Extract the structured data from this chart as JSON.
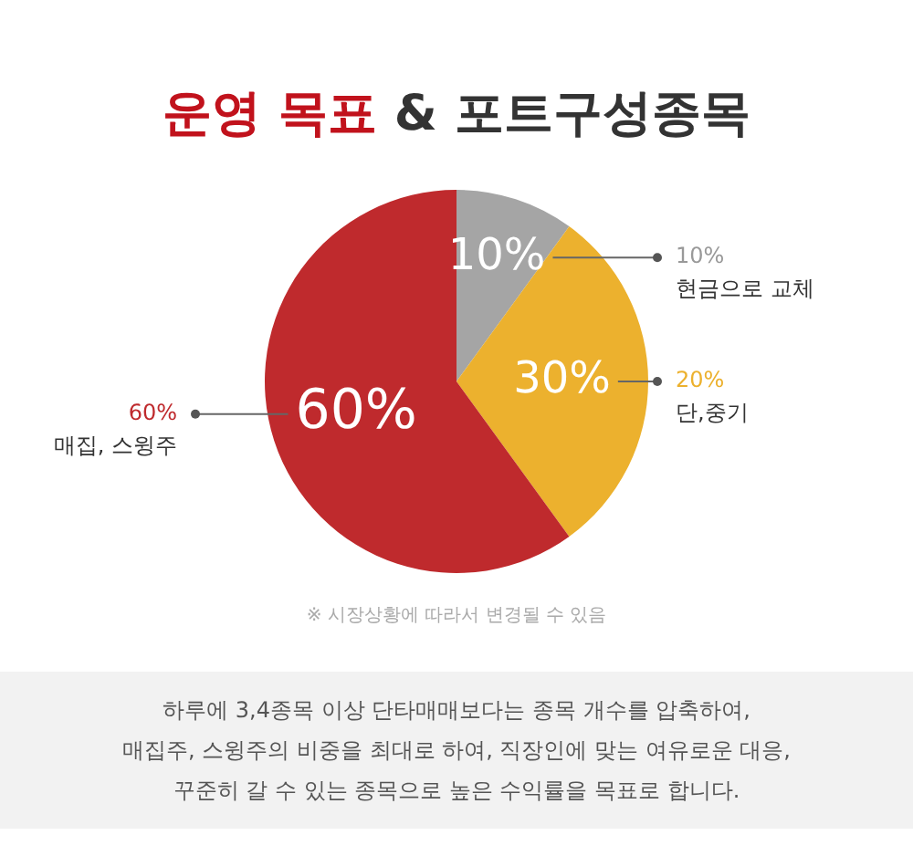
{
  "chart_data": {
    "type": "pie",
    "title": "운영 목표 & 포트구성종목",
    "categories": [
      "현금으로 교체",
      "단,중기",
      "매집, 스윙주"
    ],
    "values": [
      10,
      30,
      60
    ],
    "colors": [
      "#a5a5a5",
      "#ecb12e",
      "#bf2a2d"
    ],
    "value_labels": [
      "10%",
      "30%",
      "60%"
    ],
    "legend": false,
    "annotations": [
      {
        "text": "10%",
        "x": "현금으로 교체"
      },
      {
        "text": "20%",
        "x": "단,중기"
      },
      {
        "text": "60%",
        "x": "매집, 스윙주"
      },
      "※ 시장상황에 따라서 변경될 수 있음",
      "하루에 3,4종목 이상 단타매매보다는 종목 개수를 압축하여,",
      "매집주, 스윙주의 비중을 최대로 하여, 직장인에 맞는 여유로운 대응,",
      "꾸준히 갈 수 있는 종목으로 높은 수익률을 목표로 합니다."
    ]
  }
}
